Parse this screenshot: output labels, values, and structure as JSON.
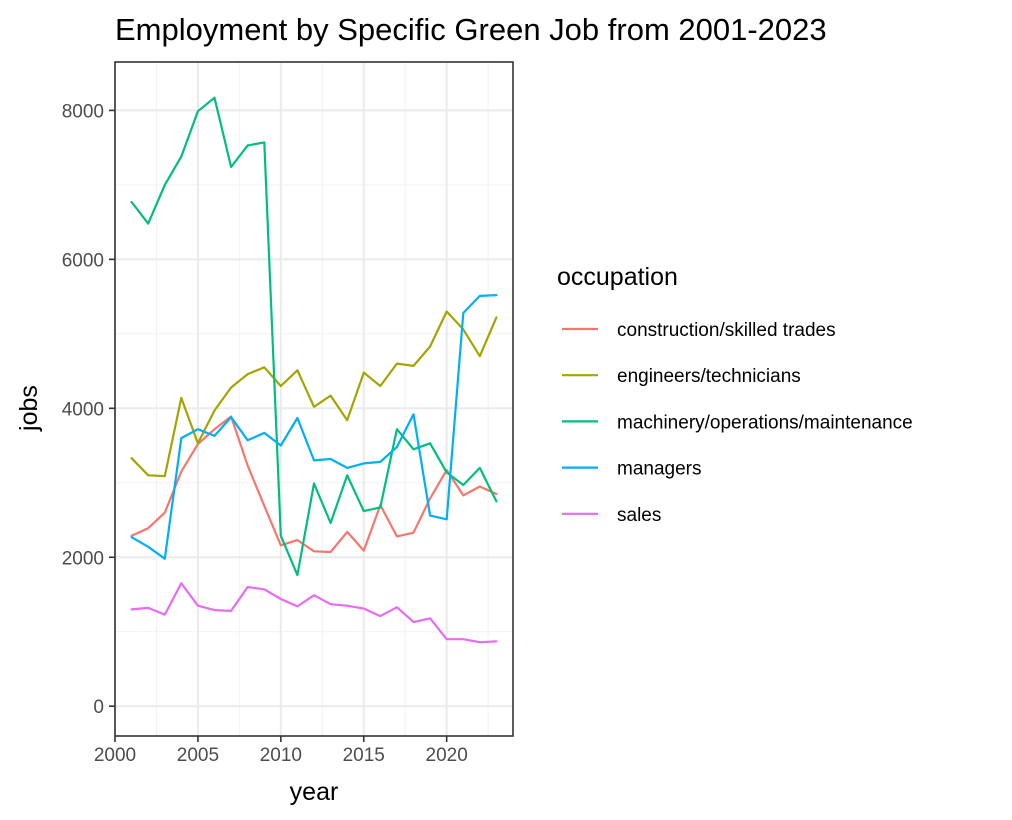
{
  "chart_data": {
    "type": "line",
    "title": "Employment by Specific Green Job from 2001-2023",
    "xlabel": "year",
    "ylabel": "jobs",
    "xlim": [
      2000,
      2024
    ],
    "ylim": [
      -400,
      8650
    ],
    "x_ticks": [
      2000,
      2005,
      2010,
      2015,
      2020
    ],
    "y_ticks": [
      0,
      2000,
      4000,
      6000,
      8000
    ],
    "grid": true,
    "legend_title": "occupation",
    "legend_position": "right",
    "x": [
      2001,
      2002,
      2003,
      2004,
      2005,
      2006,
      2007,
      2008,
      2009,
      2010,
      2011,
      2012,
      2013,
      2014,
      2015,
      2016,
      2017,
      2018,
      2019,
      2020,
      2021,
      2022,
      2023
    ],
    "series": [
      {
        "name": "construction/skilled trades",
        "color": "#f8766d",
        "values": [
          2290,
          2390,
          2600,
          3150,
          3520,
          3720,
          3890,
          3230,
          2690,
          2160,
          2230,
          2080,
          2070,
          2340,
          2090,
          2700,
          2280,
          2330,
          2790,
          3170,
          2830,
          2950,
          2850
        ]
      },
      {
        "name": "engineers/technicians",
        "color": "#a3a500",
        "values": [
          3330,
          3100,
          3090,
          4140,
          3530,
          3970,
          4280,
          4460,
          4550,
          4300,
          4510,
          4020,
          4170,
          3840,
          4480,
          4300,
          4600,
          4570,
          4830,
          5300,
          5060,
          4700,
          5220
        ]
      },
      {
        "name": "machinery/operations/maintenance",
        "color": "#00bf7d",
        "values": [
          6770,
          6480,
          7000,
          7380,
          7990,
          8170,
          7240,
          7530,
          7570,
          2290,
          1760,
          2990,
          2460,
          3100,
          2620,
          2670,
          3720,
          3450,
          3530,
          3140,
          2970,
          3200,
          2750
        ]
      },
      {
        "name": "managers",
        "color": "#00b0f6",
        "values": [
          2270,
          2140,
          1980,
          3600,
          3720,
          3630,
          3880,
          3570,
          3670,
          3500,
          3870,
          3300,
          3320,
          3200,
          3260,
          3280,
          3480,
          3920,
          2560,
          2510,
          5280,
          5510,
          5520
        ]
      },
      {
        "name": "sales",
        "color": "#e76bf3",
        "values": [
          1300,
          1320,
          1230,
          1650,
          1350,
          1290,
          1280,
          1600,
          1570,
          1440,
          1340,
          1490,
          1370,
          1350,
          1310,
          1210,
          1330,
          1130,
          1180,
          900,
          900,
          860,
          870
        ]
      }
    ]
  }
}
